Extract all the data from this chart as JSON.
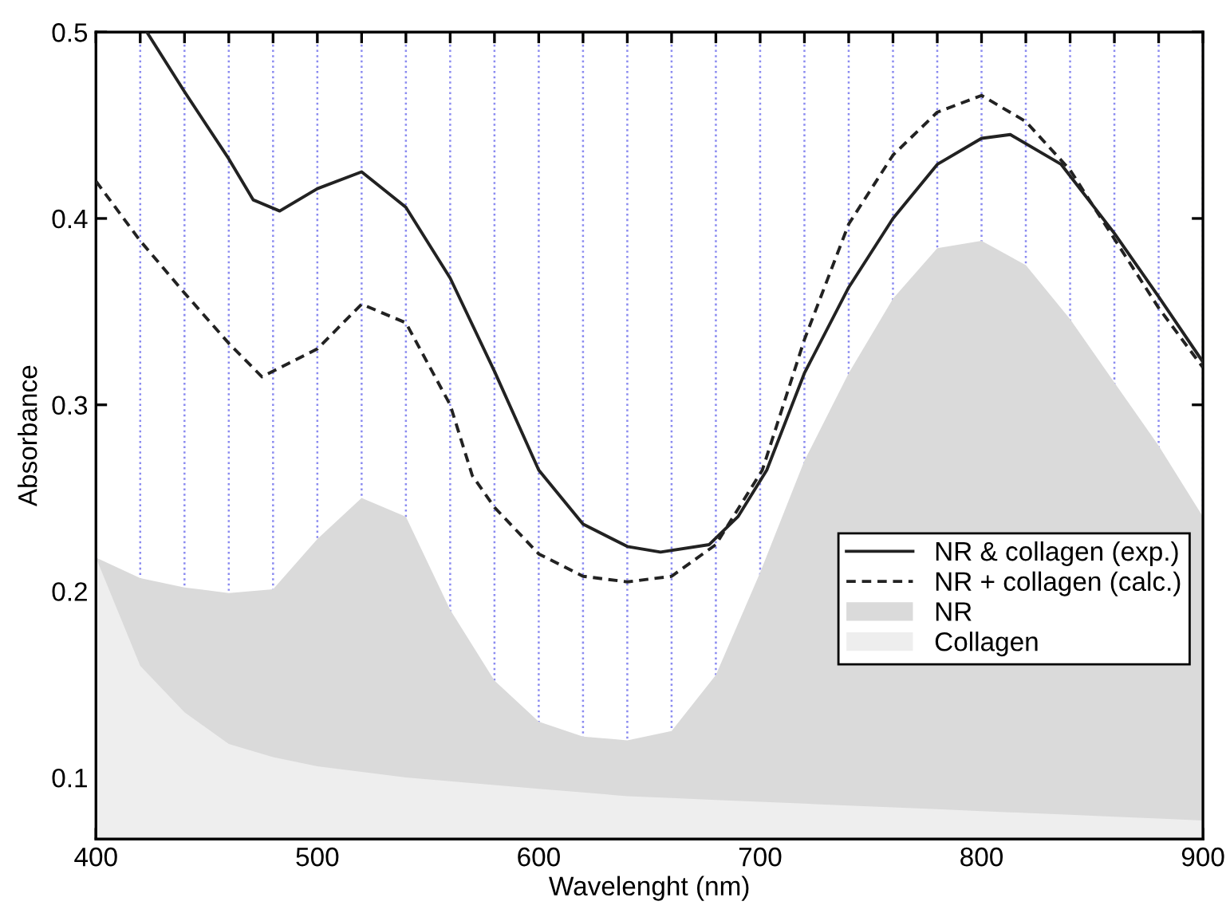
{
  "chart_data": {
    "type": "line",
    "xlabel": "Wavelenght (nm)",
    "ylabel": "Absorbance",
    "xlim": [
      400,
      900
    ],
    "ylim": [
      0.067,
      0.5
    ],
    "xticks": [
      400,
      {
        "value": 420,
        "label": null
      },
      {
        "value": 440,
        "label": null
      },
      {
        "value": 460,
        "label": null
      },
      {
        "value": 480,
        "label": null
      },
      500,
      {
        "value": 520,
        "label": null
      },
      {
        "value": 540,
        "label": null
      },
      {
        "value": 560,
        "label": null
      },
      {
        "value": 580,
        "label": null
      },
      600,
      {
        "value": 620,
        "label": null
      },
      {
        "value": 640,
        "label": null
      },
      {
        "value": 660,
        "label": null
      },
      {
        "value": 680,
        "label": null
      },
      700,
      {
        "value": 720,
        "label": null
      },
      {
        "value": 740,
        "label": null
      },
      {
        "value": 760,
        "label": null
      },
      {
        "value": 780,
        "label": null
      },
      800,
      {
        "value": 820,
        "label": null
      },
      {
        "value": 840,
        "label": null
      },
      {
        "value": 860,
        "label": null
      },
      {
        "value": 880,
        "label": null
      },
      900
    ],
    "yticks": [
      0.1,
      0.2,
      0.3,
      0.4,
      0.5
    ],
    "grid": "x",
    "legend": "bottom right",
    "series": [
      {
        "name": "NR & collagen (exp.)",
        "line_style": "solid",
        "color": "#222222",
        "x": [
          423,
          440,
          460,
          471,
          483,
          500,
          520,
          540,
          560,
          580,
          600,
          620,
          640,
          655,
          677,
          690,
          703,
          720,
          740,
          760,
          780,
          800,
          813,
          836,
          860,
          880,
          900
        ],
        "values": [
          0.5,
          0.468,
          0.432,
          0.41,
          0.404,
          0.416,
          0.425,
          0.406,
          0.368,
          0.318,
          0.265,
          0.236,
          0.224,
          0.221,
          0.225,
          0.24,
          0.265,
          0.317,
          0.363,
          0.4,
          0.429,
          0.443,
          0.445,
          0.429,
          0.392,
          0.358,
          0.323
        ]
      },
      {
        "name": "NR + collagen (calc.)",
        "line_style": "dashed",
        "color": "#222222",
        "x": [
          400,
          420,
          440,
          460,
          475,
          500,
          520,
          540,
          560,
          570,
          580,
          600,
          620,
          640,
          660,
          680,
          701,
          720,
          740,
          760,
          780,
          800,
          820,
          840,
          860,
          880,
          900
        ],
        "values": [
          0.42,
          0.388,
          0.36,
          0.333,
          0.315,
          0.33,
          0.354,
          0.344,
          0.3,
          0.262,
          0.245,
          0.22,
          0.208,
          0.205,
          0.208,
          0.225,
          0.265,
          0.335,
          0.397,
          0.434,
          0.457,
          0.466,
          0.452,
          0.426,
          0.389,
          0.352,
          0.32
        ]
      },
      {
        "name": "NR",
        "type": "area",
        "color": "#dadada",
        "x": [
          400,
          420,
          440,
          460,
          480,
          500,
          520,
          540,
          560,
          580,
          600,
          620,
          640,
          660,
          680,
          700,
          720,
          740,
          760,
          780,
          800,
          820,
          840,
          860,
          880,
          900
        ],
        "values": [
          0.218,
          0.207,
          0.202,
          0.199,
          0.201,
          0.228,
          0.25,
          0.24,
          0.19,
          0.152,
          0.13,
          0.122,
          0.12,
          0.125,
          0.155,
          0.21,
          0.27,
          0.317,
          0.357,
          0.384,
          0.388,
          0.375,
          0.346,
          0.312,
          0.278,
          0.24
        ]
      },
      {
        "name": "Collagen",
        "type": "area",
        "color": "#eeeeee",
        "x": [
          400,
          420,
          440,
          460,
          480,
          500,
          520,
          540,
          560,
          580,
          600,
          620,
          640,
          660,
          680,
          700,
          720,
          740,
          760,
          780,
          800,
          820,
          840,
          860,
          880,
          900
        ],
        "values": [
          0.218,
          0.16,
          0.135,
          0.118,
          0.111,
          0.106,
          0.103,
          0.1,
          0.098,
          0.096,
          0.094,
          0.092,
          0.09,
          0.089,
          0.088,
          0.087,
          0.086,
          0.085,
          0.084,
          0.083,
          0.082,
          0.081,
          0.08,
          0.079,
          0.078,
          0.077
        ]
      }
    ]
  }
}
